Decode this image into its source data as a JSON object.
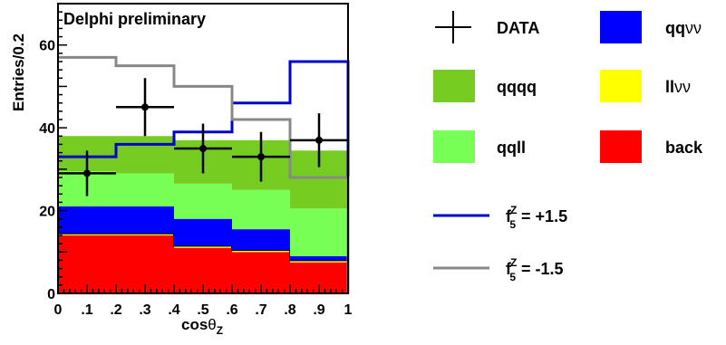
{
  "chart_data": {
    "type": "bar",
    "title": "Delphi preliminary",
    "xlabel_main": "cos",
    "xlabel_theta": "θ",
    "xlabel_sub": "Z",
    "ylabel": "Entries/0.2",
    "xlim": [
      0,
      1
    ],
    "ylim": [
      0,
      70
    ],
    "x_tick_labels": [
      "0",
      ".1",
      ".2",
      ".3",
      ".4",
      ".5",
      ".6",
      ".7",
      ".8",
      ".9",
      "1"
    ],
    "y_tick_labels": [
      "0",
      "20",
      "40",
      "60"
    ],
    "bin_edges": [
      0,
      0.2,
      0.4,
      0.6,
      0.8,
      1.0
    ],
    "stack": [
      {
        "name": "back",
        "color": "#ff0000",
        "values": [
          14,
          14,
          11,
          10,
          7.5
        ]
      },
      {
        "name": "llνν",
        "color": "#ffff00",
        "values": [
          0.5,
          0.5,
          0.5,
          0.5,
          0.5
        ]
      },
      {
        "name": "qqνν",
        "color": "#0000ff",
        "values": [
          6.5,
          6.5,
          6.5,
          5,
          1
        ]
      },
      {
        "name": "qqll",
        "color": "#77ff55",
        "values": [
          8.5,
          8,
          8.5,
          9.5,
          11.5
        ]
      },
      {
        "name": "qqqq",
        "color": "#77cc22",
        "values": [
          8.5,
          9,
          10.5,
          12,
          14
        ]
      }
    ],
    "lines": [
      {
        "name": "f5Z = +1.5",
        "label_f": "f",
        "label_sup": "Z",
        "label_sub": "5",
        "label_value": "= +1.5",
        "color": "#0000cc",
        "values": [
          33,
          36,
          39,
          46,
          56
        ]
      },
      {
        "name": "f5Z = -1.5",
        "label_f": "f",
        "label_sup": "Z",
        "label_sub": "5",
        "label_value": "= -1.5",
        "color": "#888888",
        "values": [
          57,
          55,
          50,
          42,
          28
        ]
      }
    ],
    "data": {
      "name": "DATA",
      "x": [
        0.1,
        0.3,
        0.5,
        0.7,
        0.9
      ],
      "y": [
        29,
        45,
        35,
        33,
        37
      ],
      "yerr": [
        5.5,
        7,
        6,
        6,
        6.5
      ],
      "xerr": [
        0.1,
        0.1,
        0.1,
        0.1,
        0.1
      ]
    },
    "legend_entries": [
      {
        "kind": "marker",
        "label": "DATA"
      },
      {
        "kind": "box",
        "label_main": "qq",
        "label_greek": "νν",
        "color": "#0000ff"
      },
      {
        "kind": "box",
        "label_main": "qqqq",
        "label_greek": "",
        "color": "#77cc22"
      },
      {
        "kind": "box",
        "label_main": "ll",
        "label_greek": "νν",
        "color": "#ffff00"
      },
      {
        "kind": "box",
        "label_main": "qqll",
        "label_greek": "",
        "color": "#77ff55"
      },
      {
        "kind": "box",
        "label_main": "back",
        "label_greek": "",
        "color": "#ff0000"
      }
    ],
    "legend_placement": "right",
    "grid": false
  }
}
